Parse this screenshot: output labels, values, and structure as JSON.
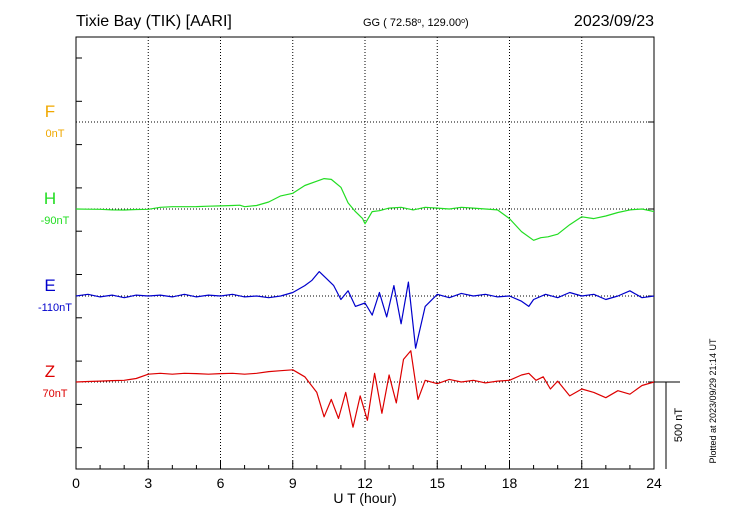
{
  "header": {
    "station": "Tixie Bay (TIK)  [AARI]",
    "coords_prefix": "GG ( 72.58",
    "coords_mid": ", 129.00",
    "coords_suffix": ")",
    "date": "2023/09/23"
  },
  "footer": {
    "plotted_note": "Plotted at 2023/09/29 21:14 UT"
  },
  "chart_data": {
    "type": "line",
    "title": "",
    "xlabel": "U T (hour)",
    "xlim": [
      0,
      24
    ],
    "x_ticks": [
      "0",
      "3",
      "6",
      "9",
      "12",
      "15",
      "18",
      "21",
      "24"
    ],
    "scale_bar_label": "500 nT",
    "scale_bar_nT": 500,
    "grid": "dotted horizontal baselines and vertical lines every 3 hours",
    "series": [
      {
        "name": "F",
        "baseline_label": "0nT",
        "color": "#f0a800",
        "values": []
      },
      {
        "name": "H",
        "baseline_label": "-90nT",
        "color": "#22dd22",
        "x": [
          0,
          0.5,
          1,
          1.5,
          2,
          2.5,
          3,
          3.5,
          4,
          4.5,
          5,
          5.5,
          6,
          6.5,
          6.8,
          7,
          7.5,
          8,
          8.5,
          9,
          9.5,
          10,
          10.3,
          10.6,
          11,
          11.3,
          11.6,
          11.9,
          12,
          12.3,
          12.6,
          13,
          13.5,
          14,
          14.5,
          15,
          15.5,
          16,
          16.5,
          17,
          17.5,
          18,
          18.5,
          19,
          19.3,
          19.6,
          20,
          20.5,
          21,
          21.5,
          22,
          22.5,
          23,
          23.5,
          24
        ],
        "values": [
          0,
          -1,
          -2,
          -5,
          -6,
          -3,
          -2,
          10,
          13,
          13,
          14,
          16,
          18,
          20,
          22,
          13,
          20,
          40,
          75,
          90,
          135,
          160,
          175,
          170,
          125,
          35,
          -15,
          -55,
          -85,
          -15,
          -10,
          5,
          10,
          -5,
          10,
          5,
          0,
          10,
          5,
          0,
          -5,
          -55,
          -130,
          -180,
          -165,
          -160,
          -145,
          -90,
          -45,
          -55,
          -40,
          -20,
          -5,
          0,
          -15
        ]
      },
      {
        "name": "E",
        "baseline_label": "-110nT",
        "color": "#0000cc",
        "x": [
          0,
          0.5,
          1,
          1.5,
          2,
          2.5,
          3,
          3.5,
          4,
          4.5,
          5,
          5.5,
          6,
          6.5,
          7,
          7.5,
          8,
          8.5,
          9,
          9.5,
          9.8,
          10.1,
          10.4,
          10.7,
          11,
          11.3,
          11.6,
          12,
          12.3,
          12.6,
          12.9,
          13.2,
          13.5,
          13.8,
          14.1,
          14.5,
          15,
          15.5,
          16,
          16.5,
          17,
          17.5,
          18,
          18.5,
          18.8,
          19,
          19.5,
          20,
          20.5,
          21,
          21.5,
          22,
          22.5,
          23,
          23.5,
          24
        ],
        "values": [
          0,
          10,
          -5,
          5,
          -10,
          5,
          0,
          5,
          -5,
          10,
          -5,
          5,
          0,
          10,
          -5,
          0,
          -10,
          0,
          20,
          60,
          90,
          140,
          100,
          60,
          -20,
          30,
          -60,
          -40,
          -110,
          20,
          -120,
          60,
          -160,
          80,
          -300,
          -60,
          10,
          -10,
          15,
          0,
          10,
          -5,
          0,
          -30,
          -60,
          -20,
          10,
          -10,
          20,
          0,
          10,
          -20,
          0,
          30,
          -10,
          0
        ]
      },
      {
        "name": "Z",
        "baseline_label": "70nT",
        "color": "#dd0000",
        "x": [
          0,
          0.5,
          1,
          1.5,
          2,
          2.5,
          3,
          3.5,
          4,
          4.5,
          5,
          5.5,
          6,
          6.5,
          7,
          7.5,
          8,
          8.5,
          9,
          9.5,
          10,
          10.3,
          10.6,
          10.9,
          11.2,
          11.5,
          11.8,
          12.1,
          12.4,
          12.7,
          13,
          13.3,
          13.6,
          13.9,
          14.2,
          14.5,
          15,
          15.5,
          16,
          16.5,
          17,
          17.5,
          18,
          18.5,
          18.8,
          19.1,
          19.4,
          19.7,
          20,
          20.5,
          21,
          21.5,
          22,
          22.5,
          23,
          23.5,
          24
        ],
        "values": [
          0,
          3,
          5,
          8,
          10,
          20,
          45,
          50,
          45,
          50,
          48,
          45,
          48,
          50,
          45,
          50,
          60,
          65,
          70,
          30,
          -60,
          -200,
          -100,
          -210,
          -60,
          -260,
          -80,
          -220,
          50,
          -180,
          40,
          -120,
          130,
          180,
          -100,
          10,
          -10,
          15,
          0,
          10,
          -5,
          5,
          10,
          40,
          50,
          10,
          30,
          -40,
          5,
          -80,
          -40,
          -60,
          -90,
          -50,
          -70,
          -20,
          0
        ]
      }
    ]
  }
}
